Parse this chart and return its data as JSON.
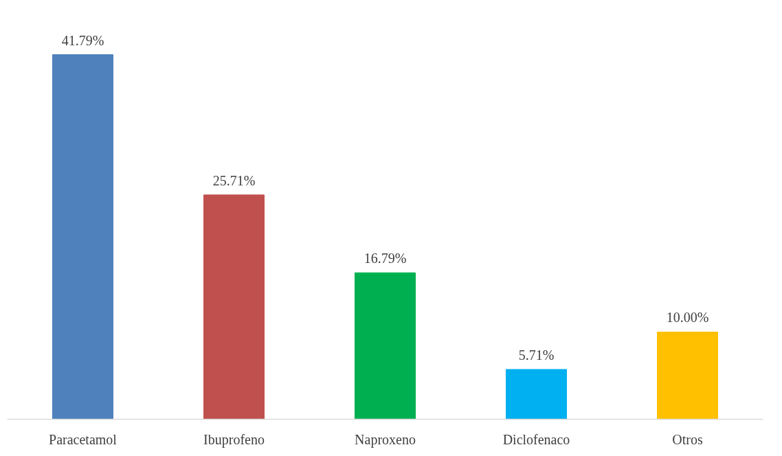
{
  "chart_data": {
    "type": "bar",
    "categories": [
      "Paracetamol",
      "Ibuprofeno",
      "Naproxeno",
      "Diclofenaco",
      "Otros"
    ],
    "values": [
      41.79,
      25.71,
      16.79,
      5.71,
      10.0
    ],
    "colors": [
      "#4f81bd",
      "#c0504d",
      "#00b050",
      "#00b0f0",
      "#ffc000"
    ],
    "value_labels": [
      "41.79%",
      "25.71%",
      "16.79%",
      "5.71%",
      "10.00%"
    ]
  }
}
